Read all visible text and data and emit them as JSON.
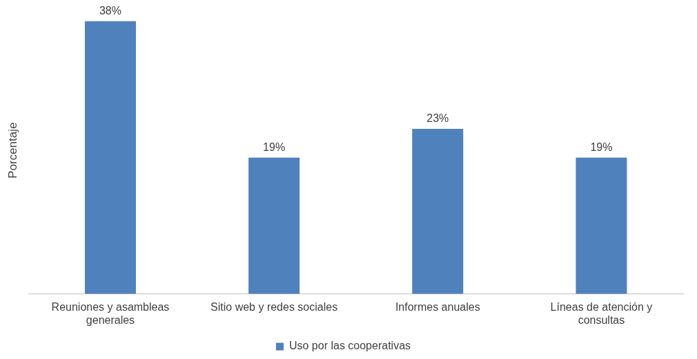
{
  "chart_data": {
    "type": "bar",
    "ylabel": "Porcentaje",
    "categories": [
      "Reuniones y asambleas generales",
      "Sitio web y redes sociales",
      "Informes anuales",
      "Líneas de atención y consultas"
    ],
    "series": [
      {
        "name": "Uso por las cooperativas",
        "color": "#4f81bd",
        "values": [
          38,
          19,
          23,
          19
        ],
        "value_labels": [
          "38%",
          "19%",
          "23%",
          "19%"
        ]
      }
    ],
    "tick_labels": "x",
    "grid": false,
    "legend": "bottom"
  }
}
